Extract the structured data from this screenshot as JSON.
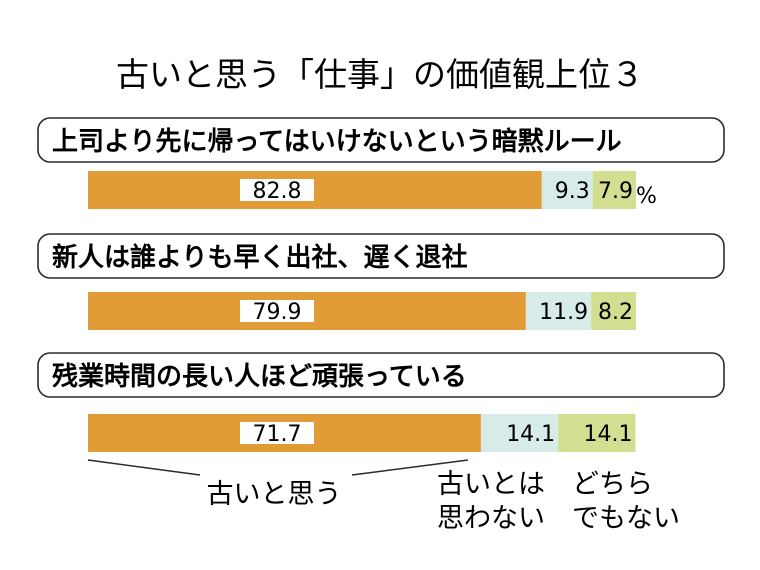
{
  "chart_data": {
    "type": "bar",
    "stacked": true,
    "orientation": "horizontal",
    "title": "古いと思う「仕事」の価値観上位３",
    "categories": [
      "上司より先に帰ってはいけないという暗黙ルール",
      "新人は誰よりも早く出社、遅く退社",
      "残業時間の長い人ほど頑張っている"
    ],
    "series": [
      {
        "name": "古いと思う",
        "values": [
          82.8,
          79.9,
          71.7
        ],
        "color": "#e19b37"
      },
      {
        "name": "古いとは思わない",
        "values": [
          9.3,
          11.9,
          14.1
        ],
        "color": "#d7ece9"
      },
      {
        "name": "どちらでもない",
        "values": [
          7.9,
          8.2,
          14.1
        ],
        "color": "#d4de91"
      }
    ],
    "unit": "%",
    "legend_lines": [
      [
        "古いと思う"
      ],
      [
        "古いとは",
        "思わない"
      ],
      [
        "どちら",
        "でもない"
      ]
    ]
  }
}
